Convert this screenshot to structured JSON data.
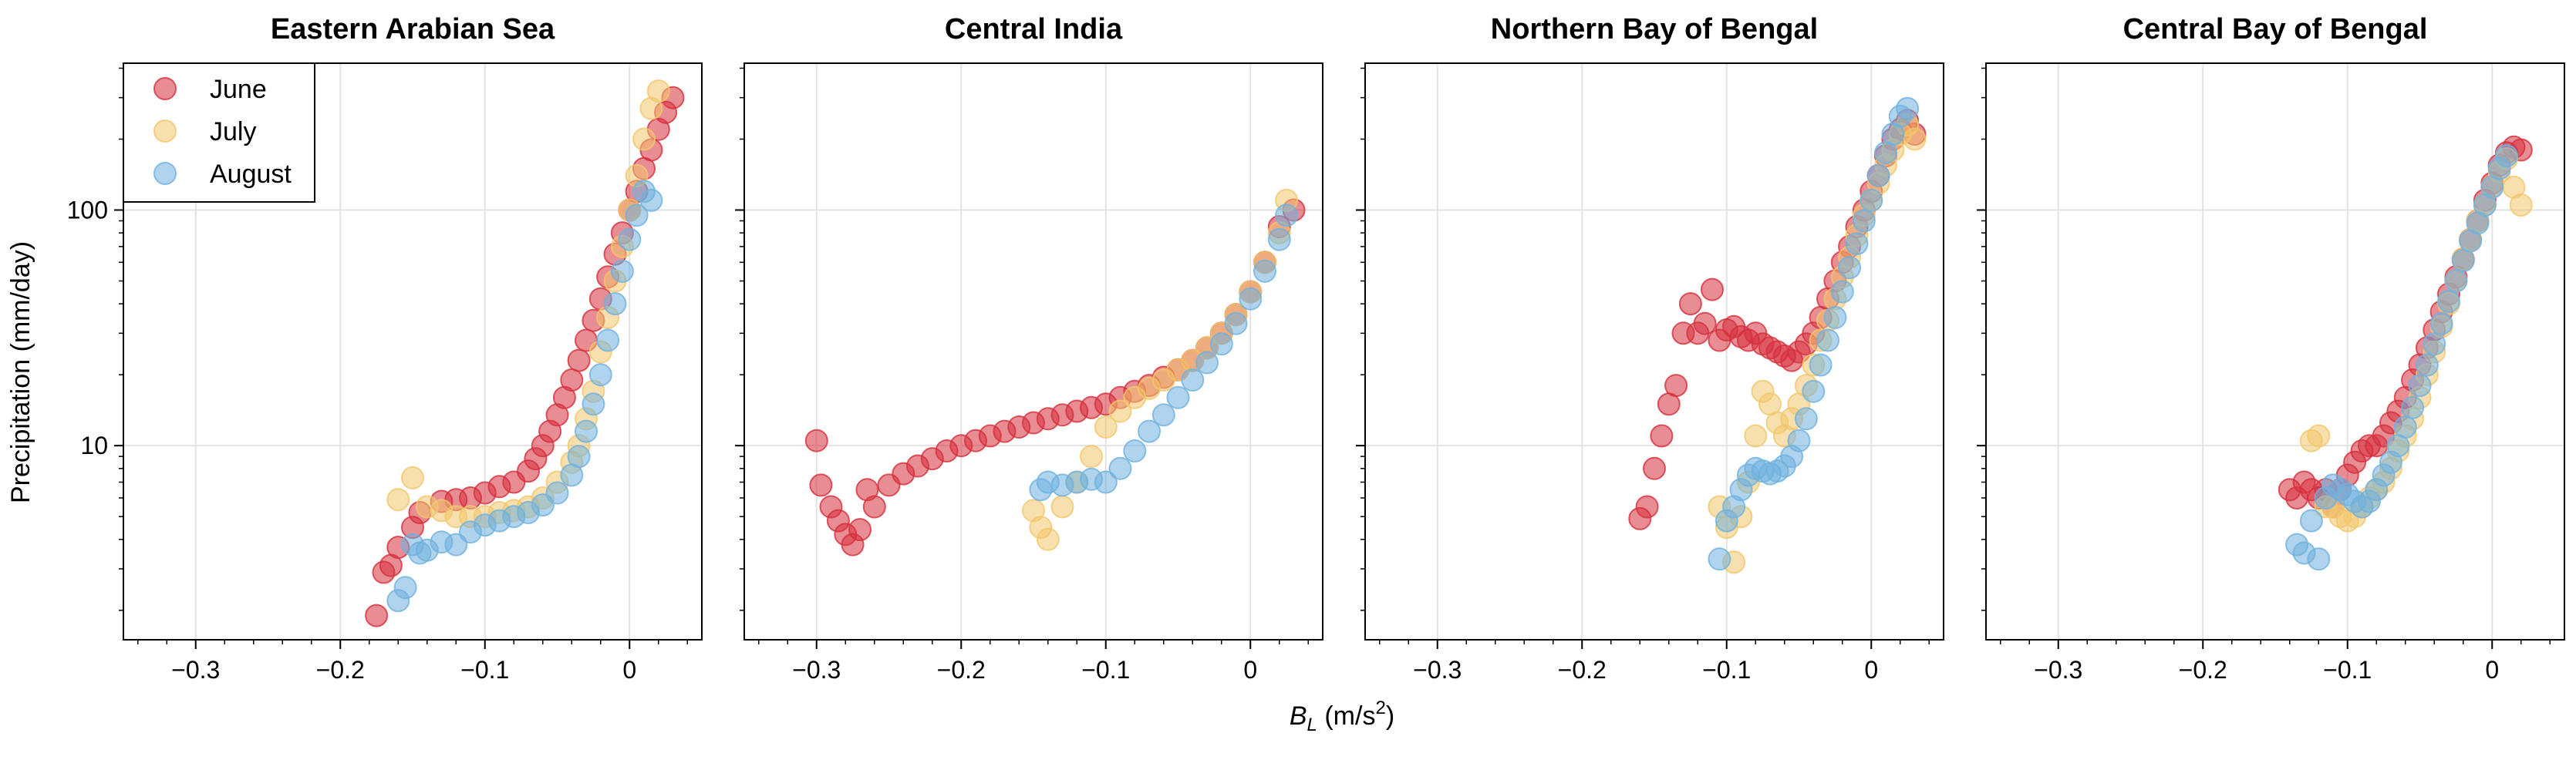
{
  "figure": {
    "ylabel": "Precipitation (mm/day)",
    "xlabel": "B_L (m/s²)",
    "xlabel_parts": {
      "symbol": "B",
      "subscript": "L",
      "unit_prefix": " (m/s",
      "unit_power": "2",
      "unit_suffix": ")"
    }
  },
  "legend": {
    "placement": "upper-left of first panel",
    "entries": [
      {
        "label": "June",
        "color": "#d62f3c"
      },
      {
        "label": "July",
        "color": "#f3c76b"
      },
      {
        "label": "August",
        "color": "#6fb1de"
      }
    ]
  },
  "chart_data": [
    {
      "type": "scatter",
      "title": "Eastern Arabian Sea",
      "xlim": [
        -0.35,
        0.05
      ],
      "ylim": [
        1.5,
        420
      ],
      "yscale": "log",
      "grid": true,
      "xticks": [
        -0.3,
        -0.2,
        -0.1,
        0
      ],
      "xtick_labels": [
        "−0.3",
        "−0.2",
        "−0.1",
        "0"
      ],
      "yticks": [
        10,
        100
      ],
      "ytick_labels": [
        "10",
        "100"
      ],
      "series": [
        {
          "name": "June",
          "color": "#d62f3c",
          "x": [
            -0.175,
            -0.17,
            -0.165,
            -0.16,
            -0.15,
            -0.145,
            -0.13,
            -0.12,
            -0.11,
            -0.1,
            -0.09,
            -0.08,
            -0.07,
            -0.065,
            -0.06,
            -0.055,
            -0.05,
            -0.045,
            -0.04,
            -0.035,
            -0.03,
            -0.025,
            -0.02,
            -0.015,
            -0.01,
            -0.005,
            0.0,
            0.005,
            0.01,
            0.015,
            0.02,
            0.025,
            0.03
          ],
          "y": [
            1.9,
            2.9,
            3.1,
            3.7,
            4.5,
            5.2,
            5.8,
            5.9,
            6.0,
            6.3,
            6.7,
            7.0,
            7.8,
            8.8,
            10.0,
            11.5,
            13.5,
            16.0,
            19.0,
            23.0,
            28.0,
            34.0,
            42.0,
            52.0,
            65.0,
            80.0,
            100.0,
            120.0,
            150.0,
            180.0,
            220.0,
            260.0,
            300.0
          ]
        },
        {
          "name": "July",
          "color": "#f3c76b",
          "x": [
            -0.16,
            -0.15,
            -0.14,
            -0.13,
            -0.12,
            -0.11,
            -0.1,
            -0.09,
            -0.08,
            -0.07,
            -0.06,
            -0.05,
            -0.04,
            -0.035,
            -0.03,
            -0.025,
            -0.02,
            -0.015,
            -0.01,
            -0.005,
            0.0,
            0.005,
            0.01,
            0.015,
            0.02
          ],
          "y": [
            5.9,
            7.3,
            5.5,
            5.3,
            5.0,
            5.0,
            5.0,
            5.2,
            5.3,
            5.5,
            6.0,
            7.0,
            8.5,
            10.0,
            13.0,
            17.0,
            25.0,
            35.0,
            50.0,
            70.0,
            100.0,
            140.0,
            200.0,
            270.0,
            320.0
          ]
        },
        {
          "name": "August",
          "color": "#6fb1de",
          "x": [
            -0.16,
            -0.155,
            -0.15,
            -0.145,
            -0.14,
            -0.13,
            -0.12,
            -0.11,
            -0.1,
            -0.09,
            -0.08,
            -0.07,
            -0.06,
            -0.05,
            -0.04,
            -0.035,
            -0.03,
            -0.025,
            -0.02,
            -0.015,
            -0.01,
            -0.005,
            0.0,
            0.005,
            0.01,
            0.015
          ],
          "y": [
            2.2,
            2.5,
            3.8,
            3.5,
            3.6,
            3.9,
            3.8,
            4.3,
            4.6,
            4.8,
            5.0,
            5.2,
            5.6,
            6.3,
            7.5,
            9.0,
            11.5,
            15.0,
            20.0,
            28.0,
            40.0,
            55.0,
            75.0,
            95.0,
            120.0,
            110.0
          ]
        }
      ]
    },
    {
      "type": "scatter",
      "title": "Central India",
      "xlim": [
        -0.35,
        0.05
      ],
      "ylim": [
        1.5,
        420
      ],
      "yscale": "log",
      "grid": true,
      "xticks": [
        -0.3,
        -0.2,
        -0.1,
        0
      ],
      "xtick_labels": [
        "−0.3",
        "−0.2",
        "−0.1",
        "0"
      ],
      "yticks": [
        10,
        100
      ],
      "ytick_labels": [
        "10",
        "100"
      ],
      "series": [
        {
          "name": "June",
          "color": "#d62f3c",
          "x": [
            -0.3,
            -0.297,
            -0.29,
            -0.285,
            -0.28,
            -0.275,
            -0.27,
            -0.265,
            -0.26,
            -0.25,
            -0.24,
            -0.23,
            -0.22,
            -0.21,
            -0.2,
            -0.19,
            -0.18,
            -0.17,
            -0.16,
            -0.15,
            -0.14,
            -0.13,
            -0.12,
            -0.11,
            -0.1,
            -0.09,
            -0.08,
            -0.07,
            -0.06,
            -0.05,
            -0.04,
            -0.03,
            -0.02,
            -0.01,
            0.0,
            0.01,
            0.02,
            0.03
          ],
          "y": [
            10.5,
            6.8,
            5.5,
            4.8,
            4.2,
            3.8,
            4.4,
            6.5,
            5.5,
            6.8,
            7.6,
            8.2,
            8.8,
            9.5,
            10.0,
            10.5,
            11.0,
            11.5,
            12.0,
            12.5,
            13.0,
            13.5,
            14.0,
            14.5,
            15.0,
            16.0,
            17.0,
            18.0,
            19.5,
            21.0,
            23.0,
            26.0,
            30.0,
            36.0,
            45.0,
            60.0,
            85.0,
            100.0
          ]
        },
        {
          "name": "July",
          "color": "#f3c76b",
          "x": [
            -0.15,
            -0.145,
            -0.14,
            -0.13,
            -0.12,
            -0.11,
            -0.1,
            -0.09,
            -0.08,
            -0.07,
            -0.06,
            -0.05,
            -0.04,
            -0.03,
            -0.02,
            -0.01,
            0.0,
            0.01,
            0.02,
            0.025
          ],
          "y": [
            5.3,
            4.5,
            4.0,
            5.5,
            7.0,
            9.0,
            12.0,
            14.0,
            16.0,
            17.5,
            19.0,
            21.0,
            23.0,
            26.0,
            30.0,
            36.0,
            45.0,
            60.0,
            80.0,
            110.0
          ]
        },
        {
          "name": "August",
          "color": "#6fb1de",
          "x": [
            -0.145,
            -0.14,
            -0.13,
            -0.12,
            -0.11,
            -0.1,
            -0.09,
            -0.08,
            -0.07,
            -0.06,
            -0.05,
            -0.04,
            -0.03,
            -0.02,
            -0.01,
            0.0,
            0.01,
            0.02,
            0.025
          ],
          "y": [
            6.5,
            7.0,
            6.8,
            7.0,
            7.2,
            7.0,
            8.0,
            9.5,
            11.5,
            13.5,
            16.0,
            19.0,
            22.5,
            27.0,
            33.0,
            42.0,
            55.0,
            75.0,
            95.0
          ]
        }
      ]
    },
    {
      "type": "scatter",
      "title": "Northern Bay of Bengal",
      "xlim": [
        -0.35,
        0.05
      ],
      "ylim": [
        1.5,
        420
      ],
      "yscale": "log",
      "grid": true,
      "xticks": [
        -0.3,
        -0.2,
        -0.1,
        0
      ],
      "xtick_labels": [
        "−0.3",
        "−0.2",
        "−0.1",
        "0"
      ],
      "yticks": [
        10,
        100
      ],
      "ytick_labels": [
        "10",
        "100"
      ],
      "series": [
        {
          "name": "June",
          "color": "#d62f3c",
          "x": [
            -0.16,
            -0.155,
            -0.15,
            -0.145,
            -0.14,
            -0.135,
            -0.13,
            -0.125,
            -0.12,
            -0.115,
            -0.11,
            -0.105,
            -0.1,
            -0.095,
            -0.09,
            -0.085,
            -0.08,
            -0.075,
            -0.07,
            -0.065,
            -0.06,
            -0.055,
            -0.05,
            -0.045,
            -0.04,
            -0.035,
            -0.03,
            -0.025,
            -0.02,
            -0.015,
            -0.01,
            -0.005,
            0.0,
            0.005,
            0.01,
            0.015,
            0.02,
            0.025,
            0.03
          ],
          "y": [
            4.9,
            5.5,
            8.0,
            11.0,
            15.0,
            18.0,
            30.0,
            40.0,
            30.0,
            33.0,
            46.0,
            28.0,
            31.0,
            32.0,
            29.0,
            28.0,
            30.0,
            27.0,
            26.0,
            25.0,
            24.0,
            23.0,
            25.0,
            27.0,
            30.0,
            35.0,
            42.0,
            50.0,
            60.0,
            70.0,
            85.0,
            100.0,
            120.0,
            140.0,
            170.0,
            200.0,
            220.0,
            240.0,
            210.0
          ]
        },
        {
          "name": "July",
          "color": "#f3c76b",
          "x": [
            -0.105,
            -0.1,
            -0.095,
            -0.09,
            -0.085,
            -0.08,
            -0.075,
            -0.07,
            -0.065,
            -0.06,
            -0.055,
            -0.05,
            -0.045,
            -0.04,
            -0.035,
            -0.03,
            -0.025,
            -0.02,
            -0.015,
            -0.01,
            -0.005,
            0.0,
            0.005,
            0.01,
            0.015,
            0.02,
            0.025,
            0.03
          ],
          "y": [
            5.5,
            4.5,
            3.2,
            5.0,
            7.0,
            11.0,
            17.0,
            15.0,
            12.5,
            11.0,
            13.0,
            15.0,
            18.0,
            22.0,
            28.0,
            34.0,
            42.0,
            52.0,
            63.0,
            78.0,
            95.0,
            110.0,
            130.0,
            155.0,
            180.0,
            210.0,
            230.0,
            200.0
          ]
        },
        {
          "name": "August",
          "color": "#6fb1de",
          "x": [
            -0.105,
            -0.1,
            -0.095,
            -0.09,
            -0.085,
            -0.08,
            -0.075,
            -0.07,
            -0.065,
            -0.06,
            -0.055,
            -0.05,
            -0.045,
            -0.04,
            -0.035,
            -0.03,
            -0.025,
            -0.02,
            -0.015,
            -0.01,
            -0.005,
            0.0,
            0.005,
            0.01,
            0.015,
            0.02,
            0.025
          ],
          "y": [
            3.3,
            4.8,
            5.5,
            6.5,
            7.5,
            8.0,
            7.8,
            7.6,
            7.8,
            8.2,
            9.0,
            10.5,
            13.0,
            17.0,
            22.0,
            28.0,
            35.0,
            45.0,
            57.0,
            72.0,
            90.0,
            110.0,
            140.0,
            175.0,
            210.0,
            250.0,
            270.0
          ]
        }
      ]
    },
    {
      "type": "scatter",
      "title": "Central Bay of Bengal",
      "xlim": [
        -0.35,
        0.05
      ],
      "ylim": [
        1.5,
        420
      ],
      "yscale": "log",
      "grid": true,
      "xticks": [
        -0.3,
        -0.2,
        -0.1,
        0
      ],
      "xtick_labels": [
        "−0.3",
        "−0.2",
        "−0.1",
        "0"
      ],
      "yticks": [
        10,
        100
      ],
      "ytick_labels": [
        "10",
        "100"
      ],
      "series": [
        {
          "name": "June",
          "color": "#d62f3c",
          "x": [
            -0.14,
            -0.135,
            -0.13,
            -0.125,
            -0.12,
            -0.115,
            -0.11,
            -0.105,
            -0.1,
            -0.095,
            -0.09,
            -0.085,
            -0.08,
            -0.075,
            -0.07,
            -0.065,
            -0.06,
            -0.055,
            -0.05,
            -0.045,
            -0.04,
            -0.035,
            -0.03,
            -0.025,
            -0.02,
            -0.015,
            -0.01,
            -0.005,
            0.0,
            0.005,
            0.01,
            0.015,
            0.02
          ],
          "y": [
            6.5,
            6.0,
            7.0,
            6.5,
            6.0,
            6.5,
            5.5,
            6.5,
            7.5,
            8.5,
            9.5,
            10.0,
            10.0,
            11.0,
            12.5,
            14.0,
            16.0,
            19.0,
            22.0,
            26.0,
            31.0,
            37.0,
            44.0,
            52.0,
            62.0,
            75.0,
            90.0,
            110.0,
            130.0,
            155.0,
            175.0,
            185.0,
            180.0
          ]
        },
        {
          "name": "July",
          "color": "#f3c76b",
          "x": [
            -0.125,
            -0.12,
            -0.115,
            -0.11,
            -0.105,
            -0.1,
            -0.095,
            -0.09,
            -0.085,
            -0.08,
            -0.075,
            -0.07,
            -0.065,
            -0.06,
            -0.055,
            -0.05,
            -0.045,
            -0.04,
            -0.035,
            -0.03,
            -0.025,
            -0.02,
            -0.015,
            -0.01,
            -0.005,
            0.0,
            0.005,
            0.01,
            0.015,
            0.02
          ],
          "y": [
            10.5,
            11.0,
            5.5,
            5.5,
            5.0,
            4.8,
            5.0,
            5.5,
            6.0,
            6.5,
            7.0,
            8.0,
            9.5,
            11.0,
            13.0,
            16.0,
            20.0,
            25.0,
            32.0,
            40.0,
            50.0,
            62.0,
            75.0,
            90.0,
            105.0,
            125.0,
            145.0,
            165.0,
            125.0,
            105.0
          ]
        },
        {
          "name": "August",
          "color": "#6fb1de",
          "x": [
            -0.135,
            -0.13,
            -0.125,
            -0.12,
            -0.115,
            -0.11,
            -0.105,
            -0.1,
            -0.095,
            -0.09,
            -0.085,
            -0.08,
            -0.075,
            -0.07,
            -0.065,
            -0.06,
            -0.055,
            -0.05,
            -0.045,
            -0.04,
            -0.035,
            -0.03,
            -0.025,
            -0.02,
            -0.015,
            -0.01,
            -0.005,
            0.0,
            0.005,
            0.01
          ],
          "y": [
            3.8,
            3.5,
            4.8,
            3.3,
            6.0,
            6.8,
            6.5,
            6.2,
            5.8,
            5.5,
            5.8,
            6.5,
            7.5,
            8.5,
            10.0,
            12.0,
            14.5,
            18.0,
            22.0,
            27.0,
            33.0,
            41.0,
            50.0,
            61.0,
            74.0,
            88.0,
            105.0,
            125.0,
            150.0,
            170.0
          ]
        }
      ]
    }
  ]
}
